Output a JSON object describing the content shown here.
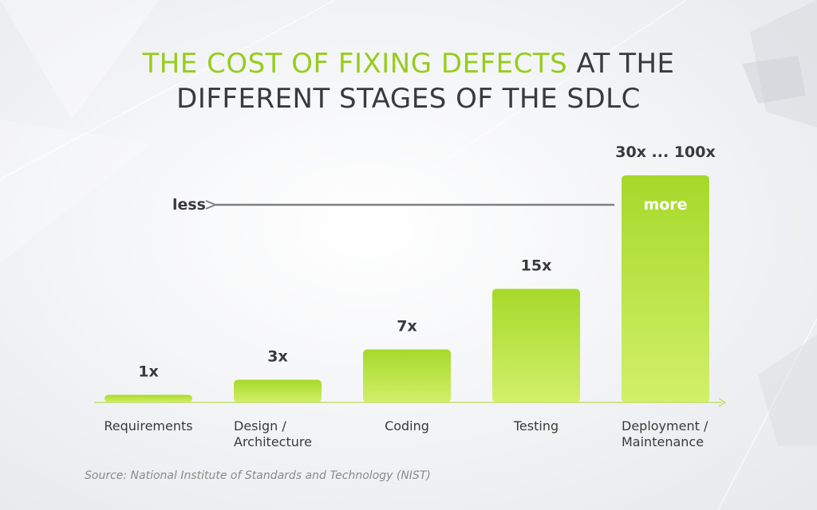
{
  "title": {
    "accent": "THE COST OF FIXING DEFECTS",
    "rest_line1": " AT THE",
    "line2": "DIFFERENT STAGES OF THE SDLC"
  },
  "colors": {
    "accent": "#98cc1e",
    "bar_top": "#a6d92a",
    "bar_bottom": "#d2f06a",
    "text": "#3a3a3a",
    "axis": "#c4e06a",
    "arrow": "#808080"
  },
  "arrow": {
    "left_label": "less",
    "right_label": "more"
  },
  "chart_data": {
    "type": "bar",
    "categories": [
      "Requirements",
      "Design / Architecture",
      "Coding",
      "Testing",
      "Deployment / Maintenance"
    ],
    "category_lines": [
      [
        "Requirements"
      ],
      [
        "Design /",
        "Architecture"
      ],
      [
        "Coding"
      ],
      [
        "Testing"
      ],
      [
        "Deployment /",
        "Maintenance"
      ]
    ],
    "value_labels": [
      "1x",
      "3x",
      "7x",
      "15x",
      "30x ... 100x"
    ],
    "values": [
      1,
      3,
      7,
      15,
      30
    ],
    "title": "THE COST OF FIXING DEFECTS AT THE DIFFERENT STAGES OF THE SDLC",
    "xlabel": "",
    "ylabel": "",
    "grid": false
  },
  "source": "Source: National Institute of Standards and Technology (NIST)"
}
